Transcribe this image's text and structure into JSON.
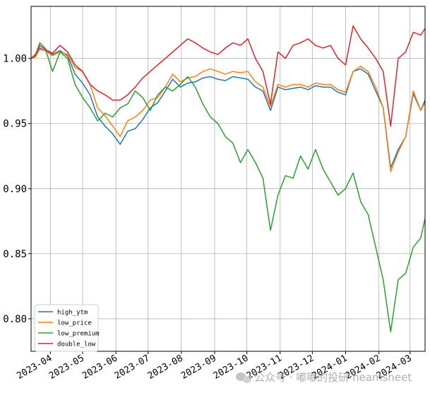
{
  "chart_data": {
    "type": "line",
    "title": "",
    "xlabel": "",
    "ylabel": "",
    "x_ticks": [
      "2023-04",
      "2023-05",
      "2023-06",
      "2023-07",
      "2023-08",
      "2023-09",
      "2023-10",
      "2023-11",
      "2023-12",
      "2024-01",
      "2024-02",
      "2024-03"
    ],
    "xlim": [
      "2023-03-14",
      "2024-03-15"
    ],
    "y_ticks": [
      "0.80",
      "0.85",
      "0.90",
      "0.95",
      "1.00"
    ],
    "ylim": [
      0.775,
      1.04
    ],
    "grid": true,
    "legend_position": "lower-left",
    "series": [
      {
        "name": "high_ytm",
        "color": "#1f77b4",
        "x": [
          "2023-03-14",
          "2023-03-18",
          "2023-03-22",
          "2023-03-27",
          "2023-04-03",
          "2023-04-10",
          "2023-04-17",
          "2023-04-24",
          "2023-05-01",
          "2023-05-08",
          "2023-05-15",
          "2023-05-22",
          "2023-05-29",
          "2023-06-05",
          "2023-06-12",
          "2023-06-19",
          "2023-06-26",
          "2023-07-03",
          "2023-07-10",
          "2023-07-17",
          "2023-07-24",
          "2023-07-31",
          "2023-08-07",
          "2023-08-14",
          "2023-08-21",
          "2023-08-28",
          "2023-09-04",
          "2023-09-11",
          "2023-09-18",
          "2023-09-25",
          "2023-10-02",
          "2023-10-09",
          "2023-10-16",
          "2023-10-23",
          "2023-10-30",
          "2023-11-06",
          "2023-11-13",
          "2023-11-20",
          "2023-11-27",
          "2023-12-04",
          "2023-12-11",
          "2023-12-18",
          "2023-12-25",
          "2024-01-01",
          "2024-01-08",
          "2024-01-15",
          "2024-01-22",
          "2024-01-29",
          "2024-02-05",
          "2024-02-12",
          "2024-02-19",
          "2024-02-26",
          "2024-03-04",
          "2024-03-11",
          "2024-03-15"
        ],
        "values": [
          1.0,
          1.002,
          1.008,
          1.006,
          1.003,
          1.006,
          1.002,
          0.988,
          0.981,
          0.972,
          0.955,
          0.948,
          0.942,
          0.934,
          0.944,
          0.946,
          0.953,
          0.962,
          0.966,
          0.975,
          0.984,
          0.978,
          0.981,
          0.982,
          0.985,
          0.986,
          0.984,
          0.983,
          0.986,
          0.985,
          0.984,
          0.978,
          0.975,
          0.96,
          0.978,
          0.976,
          0.977,
          0.978,
          0.976,
          0.979,
          0.978,
          0.978,
          0.974,
          0.972,
          0.99,
          0.992,
          0.988,
          0.975,
          0.962,
          0.916,
          0.93,
          0.94,
          0.973,
          0.96,
          0.968
        ]
      },
      {
        "name": "low_price",
        "color": "#ff7f0e",
        "x": [
          "2023-03-14",
          "2023-03-18",
          "2023-03-22",
          "2023-03-27",
          "2023-04-03",
          "2023-04-10",
          "2023-04-17",
          "2023-04-24",
          "2023-05-01",
          "2023-05-08",
          "2023-05-15",
          "2023-05-22",
          "2023-05-29",
          "2023-06-05",
          "2023-06-12",
          "2023-06-19",
          "2023-06-26",
          "2023-07-03",
          "2023-07-10",
          "2023-07-17",
          "2023-07-24",
          "2023-07-31",
          "2023-08-07",
          "2023-08-14",
          "2023-08-21",
          "2023-08-28",
          "2023-09-04",
          "2023-09-11",
          "2023-09-18",
          "2023-09-25",
          "2023-10-02",
          "2023-10-09",
          "2023-10-16",
          "2023-10-23",
          "2023-10-30",
          "2023-11-06",
          "2023-11-13",
          "2023-11-20",
          "2023-11-27",
          "2023-12-04",
          "2023-12-11",
          "2023-12-18",
          "2023-12-25",
          "2024-01-01",
          "2024-01-08",
          "2024-01-15",
          "2024-01-22",
          "2024-01-29",
          "2024-02-05",
          "2024-02-12",
          "2024-02-19",
          "2024-02-26",
          "2024-03-04",
          "2024-03-11",
          "2024-03-15"
        ],
        "values": [
          1.0,
          1.001,
          1.007,
          1.006,
          1.002,
          1.005,
          1.003,
          0.993,
          0.99,
          0.98,
          0.962,
          0.956,
          0.948,
          0.94,
          0.952,
          0.955,
          0.96,
          0.968,
          0.97,
          0.978,
          0.988,
          0.982,
          0.985,
          0.986,
          0.99,
          0.992,
          0.99,
          0.988,
          0.99,
          0.989,
          0.99,
          0.982,
          0.978,
          0.963,
          0.98,
          0.978,
          0.98,
          0.98,
          0.978,
          0.981,
          0.98,
          0.98,
          0.976,
          0.974,
          0.99,
          0.994,
          0.99,
          0.978,
          0.962,
          0.913,
          0.928,
          0.94,
          0.975,
          0.96,
          0.966
        ]
      },
      {
        "name": "low_premium",
        "color": "#2ca02c",
        "x": [
          "2023-03-14",
          "2023-03-18",
          "2023-03-22",
          "2023-03-27",
          "2023-04-03",
          "2023-04-10",
          "2023-04-17",
          "2023-04-24",
          "2023-05-01",
          "2023-05-08",
          "2023-05-15",
          "2023-05-22",
          "2023-05-29",
          "2023-06-05",
          "2023-06-12",
          "2023-06-19",
          "2023-06-26",
          "2023-07-03",
          "2023-07-10",
          "2023-07-17",
          "2023-07-24",
          "2023-07-31",
          "2023-08-07",
          "2023-08-14",
          "2023-08-21",
          "2023-08-28",
          "2023-09-04",
          "2023-09-11",
          "2023-09-18",
          "2023-09-25",
          "2023-10-02",
          "2023-10-09",
          "2023-10-16",
          "2023-10-23",
          "2023-10-30",
          "2023-11-06",
          "2023-11-13",
          "2023-11-20",
          "2023-11-27",
          "2023-12-04",
          "2023-12-11",
          "2023-12-18",
          "2023-12-25",
          "2024-01-01",
          "2024-01-08",
          "2024-01-15",
          "2024-01-22",
          "2024-01-29",
          "2024-02-05",
          "2024-02-12",
          "2024-02-19",
          "2024-02-26",
          "2024-03-04",
          "2024-03-11",
          "2024-03-15"
        ],
        "values": [
          1.0,
          1.002,
          1.012,
          1.008,
          0.99,
          1.005,
          1.0,
          0.98,
          0.97,
          0.962,
          0.952,
          0.958,
          0.955,
          0.962,
          0.965,
          0.975,
          0.97,
          0.96,
          0.972,
          0.978,
          0.975,
          0.98,
          0.986,
          0.978,
          0.965,
          0.955,
          0.95,
          0.94,
          0.935,
          0.92,
          0.93,
          0.92,
          0.908,
          0.868,
          0.895,
          0.91,
          0.908,
          0.925,
          0.915,
          0.93,
          0.915,
          0.905,
          0.895,
          0.9,
          0.912,
          0.89,
          0.88,
          0.855,
          0.83,
          0.79,
          0.83,
          0.835,
          0.855,
          0.862,
          0.877
        ]
      },
      {
        "name": "double_low",
        "color": "#d62728",
        "x": [
          "2023-03-14",
          "2023-03-18",
          "2023-03-22",
          "2023-03-27",
          "2023-04-03",
          "2023-04-10",
          "2023-04-17",
          "2023-04-24",
          "2023-05-01",
          "2023-05-08",
          "2023-05-15",
          "2023-05-22",
          "2023-05-29",
          "2023-06-05",
          "2023-06-12",
          "2023-06-19",
          "2023-06-26",
          "2023-07-03",
          "2023-07-10",
          "2023-07-17",
          "2023-07-24",
          "2023-07-31",
          "2023-08-07",
          "2023-08-14",
          "2023-08-21",
          "2023-08-28",
          "2023-09-04",
          "2023-09-11",
          "2023-09-18",
          "2023-09-25",
          "2023-10-02",
          "2023-10-09",
          "2023-10-16",
          "2023-10-23",
          "2023-10-30",
          "2023-11-06",
          "2023-11-13",
          "2023-11-20",
          "2023-11-27",
          "2023-12-04",
          "2023-12-11",
          "2023-12-18",
          "2023-12-25",
          "2024-01-01",
          "2024-01-08",
          "2024-01-15",
          "2024-01-22",
          "2024-01-29",
          "2024-02-05",
          "2024-02-12",
          "2024-02-19",
          "2024-02-26",
          "2024-03-04",
          "2024-03-11",
          "2024-03-15"
        ],
        "values": [
          1.0,
          1.003,
          1.01,
          1.007,
          1.004,
          1.01,
          1.005,
          0.995,
          0.99,
          0.98,
          0.975,
          0.972,
          0.968,
          0.968,
          0.972,
          0.978,
          0.985,
          0.99,
          0.995,
          1.0,
          1.005,
          1.01,
          1.015,
          1.012,
          1.008,
          1.005,
          1.003,
          1.008,
          1.012,
          1.01,
          1.015,
          1.0,
          0.99,
          0.965,
          1.005,
          1.0,
          1.01,
          1.012,
          1.015,
          1.01,
          1.008,
          1.01,
          1.0,
          0.995,
          1.025,
          1.015,
          1.008,
          1.0,
          0.99,
          0.948,
          1.0,
          1.005,
          1.02,
          1.018,
          1.023
        ]
      }
    ]
  },
  "watermark": {
    "text": "公众号 · 嘟嘟的投研 neamsheet",
    "icon": "wechat-icon"
  }
}
